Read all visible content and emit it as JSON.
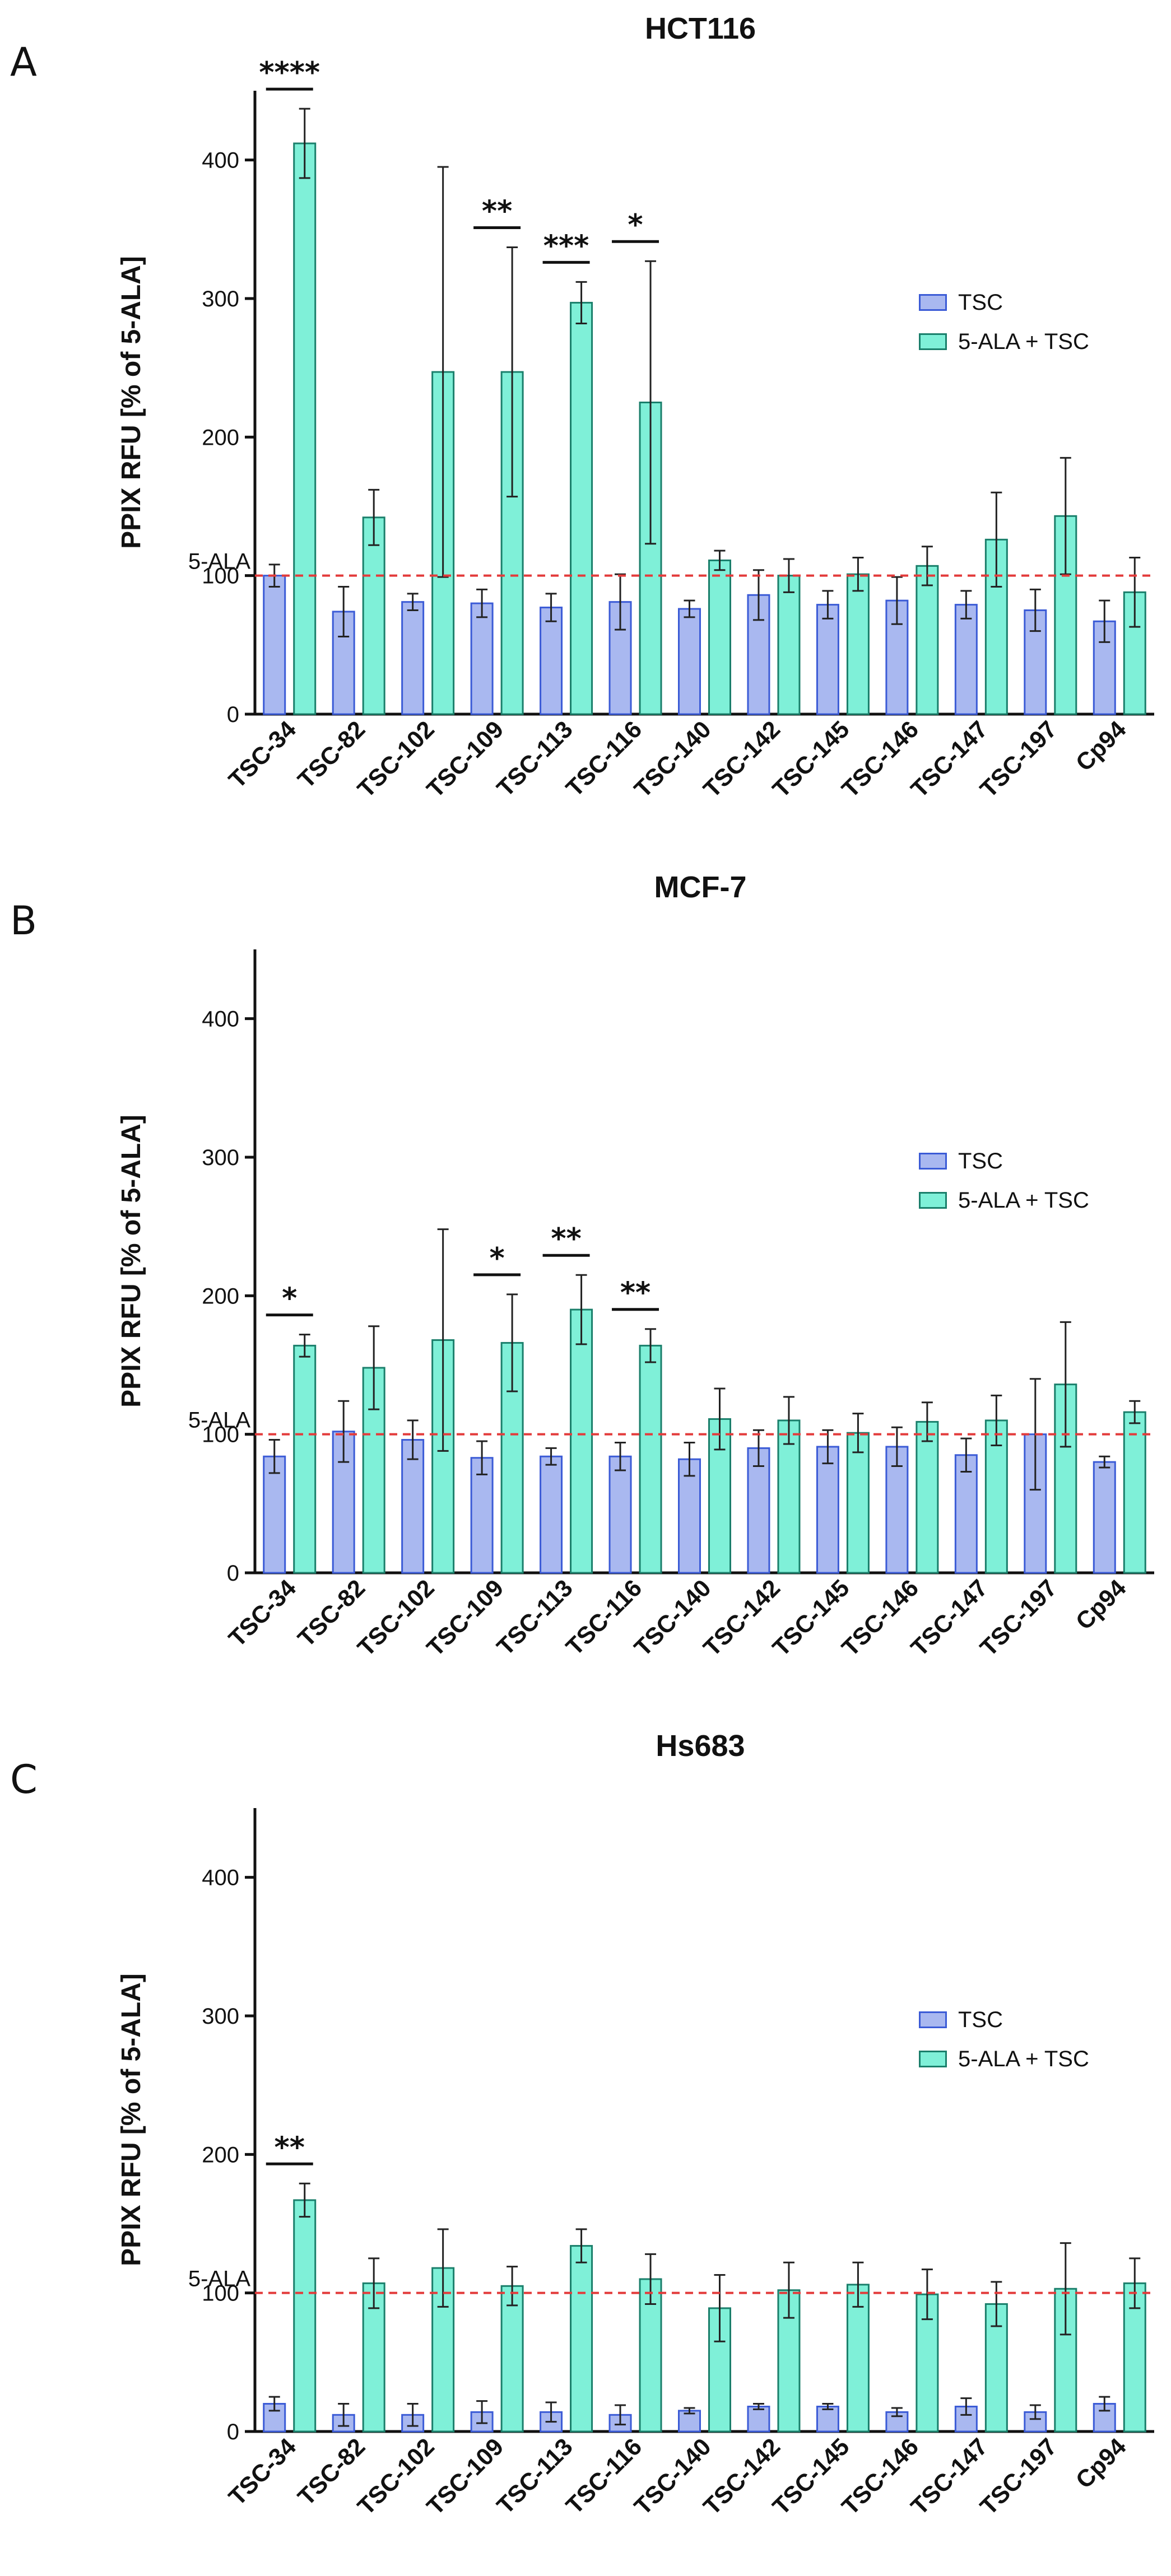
{
  "colors": {
    "tsc_fill": "#a9b8f0",
    "tsc_stroke": "#3b5bd6",
    "ala_fill": "#7ff0d8",
    "ala_stroke": "#1a7f6b",
    "reference_line": "#e33b3b"
  },
  "chart_data": [
    {
      "type": "bar",
      "panel_label": "A",
      "title": "HCT116",
      "ylabel": "PPIX RFU [% of 5-ALA]",
      "ylim": [
        0,
        450
      ],
      "yticks": [
        0,
        100,
        200,
        300,
        400
      ],
      "reference": {
        "value": 100,
        "label": "5-ALA",
        "style": "dashed"
      },
      "legend": {
        "placement": "right",
        "entries": [
          "TSC",
          "5-ALA + TSC"
        ]
      },
      "categories": [
        "TSC-34",
        "TSC-82",
        "TSC-102",
        "TSC-109",
        "TSC-113",
        "TSC-116",
        "TSC-140",
        "TSC-142",
        "TSC-145",
        "TSC-146",
        "TSC-147",
        "TSC-197",
        "Cp94"
      ],
      "series": [
        {
          "name": "TSC",
          "values": [
            100,
            74,
            81,
            80,
            77,
            81,
            76,
            86,
            79,
            82,
            79,
            75,
            67
          ],
          "errors": [
            8,
            18,
            6,
            10,
            10,
            20,
            6,
            18,
            10,
            17,
            10,
            15,
            15
          ]
        },
        {
          "name": "5-ALA + TSC",
          "values": [
            412,
            142,
            247,
            247,
            297,
            225,
            111,
            100,
            101,
            107,
            126,
            143,
            88
          ],
          "errors": [
            25,
            20,
            148,
            90,
            15,
            102,
            7,
            12,
            12,
            14,
            34,
            42,
            25
          ]
        }
      ],
      "significance": [
        {
          "category": "TSC-34",
          "label": "****"
        },
        {
          "category": "TSC-109",
          "label": "**"
        },
        {
          "category": "TSC-113",
          "label": "***"
        },
        {
          "category": "TSC-116",
          "label": "*"
        }
      ]
    },
    {
      "type": "bar",
      "panel_label": "B",
      "title": "MCF-7",
      "ylabel": "PPIX RFU [% of 5-ALA]",
      "ylim": [
        0,
        450
      ],
      "yticks": [
        0,
        100,
        200,
        300,
        400
      ],
      "reference": {
        "value": 100,
        "label": "5-ALA",
        "style": "dashed"
      },
      "legend": {
        "placement": "right",
        "entries": [
          "TSC",
          "5-ALA + TSC"
        ]
      },
      "categories": [
        "TSC-34",
        "TSC-82",
        "TSC-102",
        "TSC-109",
        "TSC-113",
        "TSC-116",
        "TSC-140",
        "TSC-142",
        "TSC-145",
        "TSC-146",
        "TSC-147",
        "TSC-197",
        "Cp94"
      ],
      "series": [
        {
          "name": "TSC",
          "values": [
            84,
            102,
            96,
            83,
            84,
            84,
            82,
            90,
            91,
            91,
            85,
            100,
            80
          ],
          "errors": [
            12,
            22,
            14,
            12,
            6,
            10,
            12,
            13,
            12,
            14,
            12,
            40,
            4
          ]
        },
        {
          "name": "5-ALA + TSC",
          "values": [
            164,
            148,
            168,
            166,
            190,
            164,
            111,
            110,
            101,
            109,
            110,
            136,
            116
          ],
          "errors": [
            8,
            30,
            80,
            35,
            25,
            12,
            22,
            17,
            14,
            14,
            18,
            45,
            8
          ]
        }
      ],
      "significance": [
        {
          "category": "TSC-34",
          "label": "*"
        },
        {
          "category": "TSC-109",
          "label": "*"
        },
        {
          "category": "TSC-113",
          "label": "**"
        },
        {
          "category": "TSC-116",
          "label": "**"
        }
      ]
    },
    {
      "type": "bar",
      "panel_label": "C",
      "title": "Hs683",
      "ylabel": "PPIX RFU [% of 5-ALA]",
      "ylim": [
        0,
        450
      ],
      "yticks": [
        0,
        100,
        200,
        300,
        400
      ],
      "reference": {
        "value": 100,
        "label": "5-ALA",
        "style": "dashed"
      },
      "legend": {
        "placement": "right",
        "entries": [
          "TSC",
          "5-ALA + TSC"
        ]
      },
      "categories": [
        "TSC-34",
        "TSC-82",
        "TSC-102",
        "TSC-109",
        "TSC-113",
        "TSC-116",
        "TSC-140",
        "TSC-142",
        "TSC-145",
        "TSC-146",
        "TSC-147",
        "TSC-197",
        "Cp94"
      ],
      "series": [
        {
          "name": "TSC",
          "values": [
            20,
            12,
            12,
            14,
            14,
            12,
            15,
            18,
            18,
            14,
            18,
            14,
            20
          ],
          "errors": [
            5,
            8,
            8,
            8,
            7,
            7,
            2,
            2,
            2,
            3,
            6,
            5,
            5
          ]
        },
        {
          "name": "5-ALA + TSC",
          "values": [
            167,
            107,
            118,
            105,
            134,
            110,
            89,
            102,
            106,
            99,
            92,
            103,
            107
          ],
          "errors": [
            12,
            18,
            28,
            14,
            12,
            18,
            24,
            20,
            16,
            18,
            16,
            33,
            18
          ]
        }
      ],
      "significance": [
        {
          "category": "TSC-34",
          "label": "**"
        }
      ]
    }
  ]
}
